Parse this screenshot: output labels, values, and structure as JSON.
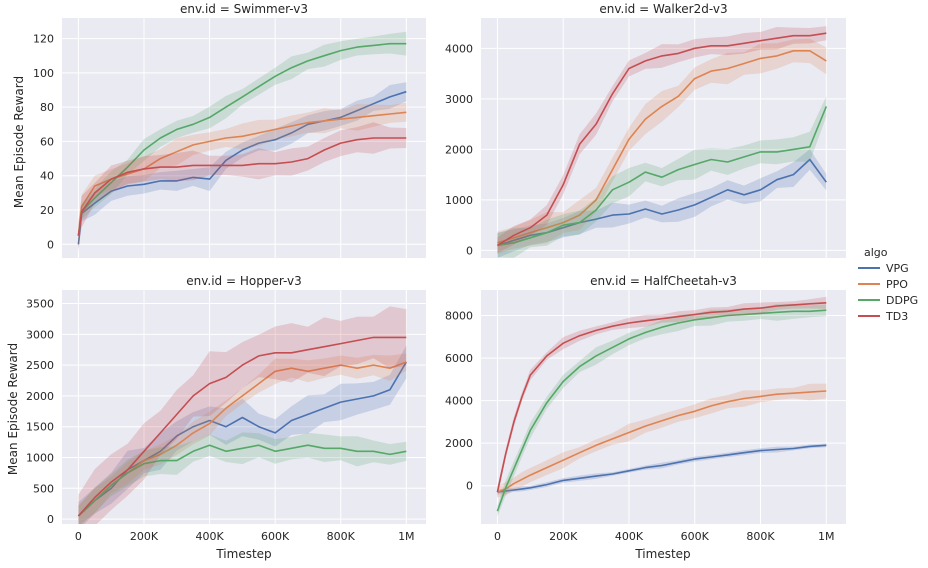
{
  "chart_data": {
    "type": "line",
    "xlabel": "Timestep",
    "ylabel": "Mean Episode Reward",
    "x_ticks": [
      0,
      200000,
      400000,
      600000,
      800000,
      1000000
    ],
    "x_tick_labels": [
      "0",
      "200K",
      "400K",
      "600K",
      "800K",
      "1M"
    ],
    "xlim": [
      -50000,
      1060000
    ],
    "legend": {
      "title": "algo",
      "placement": "right",
      "entries": [
        {
          "name": "VPG",
          "color": "#4c72b0"
        },
        {
          "name": "PPO",
          "color": "#dd8452"
        },
        {
          "name": "DDPG",
          "color": "#55a868"
        },
        {
          "name": "TD3",
          "color": "#c44e52"
        }
      ]
    },
    "panels": [
      {
        "title": "env.id = Swimmer-v3",
        "ylim": [
          -8,
          132
        ],
        "yticks": [
          0,
          20,
          40,
          60,
          80,
          100,
          120
        ],
        "x": [
          0,
          10000,
          50000,
          100000,
          150000,
          200000,
          250000,
          300000,
          350000,
          400000,
          450000,
          500000,
          550000,
          600000,
          650000,
          700000,
          750000,
          800000,
          850000,
          900000,
          950000,
          1000000
        ],
        "series": [
          {
            "name": "VPG",
            "mean": [
              0,
              18,
              24,
              31,
              34,
              35,
              37,
              37,
              39,
              38,
              49,
              55,
              59,
              61,
              65,
              70,
              72,
              74,
              78,
              82,
              86,
              89
            ],
            "band": 6
          },
          {
            "name": "PPO",
            "mean": [
              5,
              22,
              34,
              38,
              41,
              44,
              50,
              54,
              58,
              60,
              62,
              63,
              65,
              67,
              69,
              71,
              72,
              73,
              74,
              75,
              76,
              77
            ],
            "band": 7
          },
          {
            "name": "DDPG",
            "mean": [
              5,
              19,
              27,
              36,
              45,
              55,
              62,
              67,
              70,
              74,
              80,
              86,
              92,
              98,
              103,
              107,
              110,
              113,
              115,
              116,
              117,
              117
            ],
            "band": 6
          },
          {
            "name": "TD3",
            "mean": [
              5,
              19,
              30,
              38,
              42,
              44,
              45,
              45,
              46,
              46,
              46,
              46,
              47,
              47,
              48,
              50,
              55,
              59,
              61,
              62,
              62,
              62
            ],
            "band": 8
          }
        ]
      },
      {
        "title": "env.id = Walker2d-v3",
        "ylim": [
          -150,
          4600
        ],
        "yticks": [
          0,
          1000,
          2000,
          3000,
          4000
        ],
        "x": [
          0,
          50000,
          100000,
          150000,
          200000,
          250000,
          300000,
          350000,
          400000,
          450000,
          500000,
          550000,
          600000,
          650000,
          700000,
          750000,
          800000,
          850000,
          900000,
          950000,
          1000000
        ],
        "series": [
          {
            "name": "VPG",
            "mean": [
              100,
              200,
              300,
              350,
              450,
              550,
              620,
              700,
              720,
              820,
              720,
              800,
              900,
              1050,
              1200,
              1100,
              1200,
              1400,
              1500,
              1800,
              1350
            ],
            "band": 220
          },
          {
            "name": "PPO",
            "mean": [
              150,
              250,
              350,
              450,
              550,
              700,
              1000,
              1600,
              2200,
              2600,
              2850,
              3050,
              3400,
              3550,
              3600,
              3700,
              3800,
              3850,
              3950,
              3950,
              3750
            ],
            "band": 280
          },
          {
            "name": "DDPG",
            "mean": [
              100,
              150,
              250,
              350,
              500,
              550,
              800,
              1200,
              1350,
              1550,
              1450,
              1600,
              1700,
              1800,
              1750,
              1850,
              1950,
              1950,
              2000,
              2050,
              2850
            ],
            "band": 260
          },
          {
            "name": "TD3",
            "mean": [
              100,
              300,
              450,
              700,
              1300,
              2100,
              2500,
              3100,
              3600,
              3750,
              3850,
              3900,
              4000,
              4050,
              4050,
              4100,
              4150,
              4200,
              4250,
              4250,
              4300
            ],
            "band": 200
          }
        ]
      },
      {
        "title": "env.id = Hopper-v3",
        "ylim": [
          -80,
          3720
        ],
        "yticks": [
          0,
          500,
          1000,
          1500,
          2000,
          2500,
          3000,
          3500
        ],
        "x": [
          0,
          50000,
          100000,
          150000,
          200000,
          250000,
          300000,
          350000,
          400000,
          450000,
          500000,
          550000,
          600000,
          650000,
          700000,
          750000,
          800000,
          850000,
          900000,
          950000,
          1000000
        ],
        "series": [
          {
            "name": "VPG",
            "mean": [
              50,
              300,
              500,
              800,
              950,
              1100,
              1350,
              1500,
              1600,
              1500,
              1650,
              1500,
              1400,
              1600,
              1700,
              1800,
              1900,
              1950,
              2000,
              2100,
              2550
            ],
            "band": 280
          },
          {
            "name": "PPO",
            "mean": [
              50,
              300,
              550,
              750,
              950,
              1050,
              1200,
              1400,
              1550,
              1800,
              2000,
              2200,
              2400,
              2450,
              2400,
              2450,
              2500,
              2450,
              2500,
              2450,
              2550
            ],
            "band": 180
          },
          {
            "name": "DDPG",
            "mean": [
              50,
              300,
              550,
              750,
              900,
              950,
              950,
              1100,
              1200,
              1100,
              1150,
              1200,
              1100,
              1150,
              1200,
              1150,
              1150,
              1100,
              1100,
              1050,
              1100
            ],
            "band": 220
          },
          {
            "name": "TD3",
            "mean": [
              50,
              350,
              600,
              800,
              1100,
              1400,
              1700,
              2000,
              2200,
              2300,
              2500,
              2650,
              2700,
              2700,
              2750,
              2800,
              2850,
              2900,
              2950,
              2950,
              2950
            ],
            "band": 450
          }
        ]
      },
      {
        "title": "env.id = HalfCheetah-v3",
        "ylim": [
          -1800,
          9200
        ],
        "yticks": [
          0,
          2000,
          4000,
          6000,
          8000
        ],
        "x": [
          0,
          25000,
          50000,
          75000,
          100000,
          150000,
          200000,
          250000,
          300000,
          350000,
          400000,
          450000,
          500000,
          550000,
          600000,
          650000,
          700000,
          750000,
          800000,
          850000,
          900000,
          950000,
          1000000
        ],
        "series": [
          {
            "name": "VPG",
            "mean": [
              -300,
              -250,
              -200,
              -150,
              -100,
              50,
              250,
              350,
              450,
              550,
              700,
              850,
              950,
              1100,
              1250,
              1350,
              1450,
              1550,
              1650,
              1700,
              1750,
              1850,
              1900
            ],
            "band": 120
          },
          {
            "name": "PPO",
            "mean": [
              -300,
              -150,
              100,
              300,
              500,
              850,
              1200,
              1550,
              1900,
              2200,
              2500,
              2800,
              3050,
              3300,
              3500,
              3750,
              3950,
              4100,
              4200,
              4300,
              4350,
              4400,
              4450
            ],
            "band": 350
          },
          {
            "name": "DDPG",
            "mean": [
              -1200,
              -100,
              800,
              1700,
              2600,
              3900,
              4900,
              5600,
              6100,
              6500,
              6900,
              7200,
              7450,
              7650,
              7800,
              7900,
              8000,
              8050,
              8100,
              8150,
              8200,
              8200,
              8250
            ],
            "band": 350
          },
          {
            "name": "TD3",
            "mean": [
              -300,
              1500,
              3000,
              4200,
              5200,
              6100,
              6700,
              7050,
              7300,
              7500,
              7650,
              7750,
              7850,
              7950,
              8050,
              8150,
              8200,
              8300,
              8350,
              8450,
              8500,
              8550,
              8600
            ],
            "band": 250
          }
        ]
      }
    ]
  }
}
